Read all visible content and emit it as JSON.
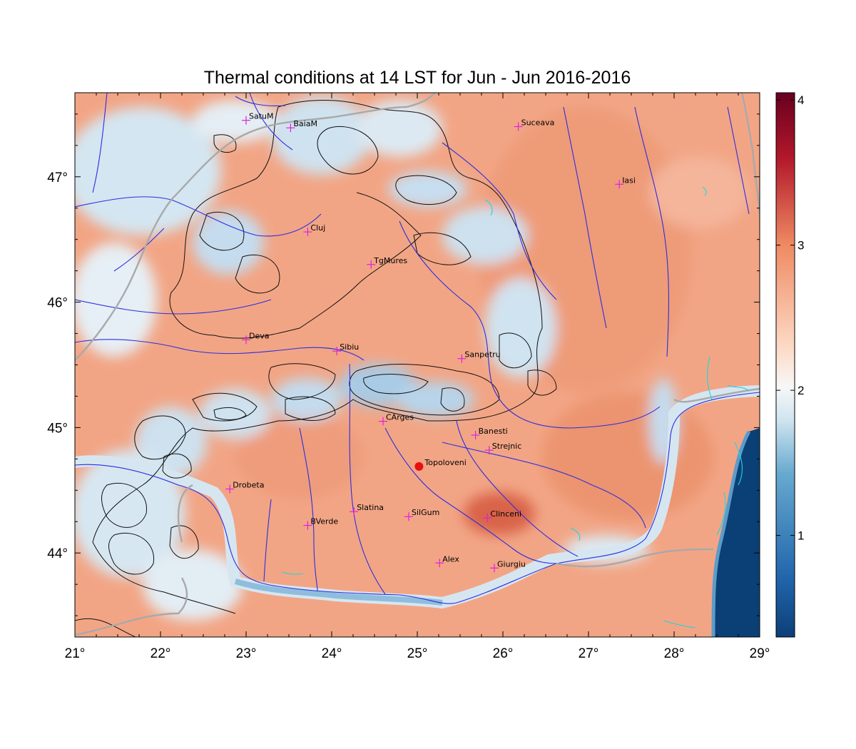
{
  "title": "Thermal conditions at 14 LST for Jun - Jun  2016-2016",
  "map_extent": {
    "lon": [
      21,
      29
    ],
    "lat": [
      43.33,
      47.67
    ]
  },
  "x_axis": {
    "ticks": [
      21,
      22,
      23,
      24,
      25,
      26,
      27,
      28,
      29
    ],
    "labels": [
      "21°",
      "22°",
      "23°",
      "24°",
      "25°",
      "26°",
      "27°",
      "28°",
      "29°"
    ]
  },
  "y_axis": {
    "ticks": [
      44,
      45,
      46,
      47
    ],
    "labels": [
      "44°",
      "45°",
      "46°",
      "47°"
    ]
  },
  "colorbar": {
    "range": [
      0.3,
      4.05
    ],
    "ticks": [
      1,
      2,
      3,
      4
    ],
    "labels": [
      "1",
      "2",
      "3",
      "4"
    ],
    "colors": [
      "#0d3f78",
      "#2166ac",
      "#67a9cf",
      "#d1e5f0",
      "#f7f7f7",
      "#fddbc7",
      "#ef8a62",
      "#b2182b",
      "#67001f"
    ]
  },
  "colors": {
    "land_warm": "#f2a585",
    "land_cool": "#d4e6f1",
    "sea": "#0b4076",
    "rivers": "#2d2de0",
    "borders": "#a9a9a9",
    "marker": "#e020e0",
    "highlight": "#e81010"
  },
  "cities": [
    {
      "name": "SatuM",
      "lon": 23.0,
      "lat": 47.45
    },
    {
      "name": "BaiaM",
      "lon": 23.52,
      "lat": 47.39
    },
    {
      "name": "Suceava",
      "lon": 26.18,
      "lat": 47.4
    },
    {
      "name": "Iasi",
      "lon": 27.36,
      "lat": 46.94
    },
    {
      "name": "Cluj",
      "lon": 23.72,
      "lat": 46.56
    },
    {
      "name": "TgMures",
      "lon": 24.46,
      "lat": 46.3
    },
    {
      "name": "Deva",
      "lon": 23.0,
      "lat": 45.7
    },
    {
      "name": "Sibiu",
      "lon": 24.06,
      "lat": 45.61
    },
    {
      "name": "Sanpetru",
      "lon": 25.52,
      "lat": 45.55
    },
    {
      "name": "CArges",
      "lon": 24.6,
      "lat": 45.05
    },
    {
      "name": "Banesti",
      "lon": 25.68,
      "lat": 44.94
    },
    {
      "name": "Strejnic",
      "lon": 25.84,
      "lat": 44.82
    },
    {
      "name": "Drobeta",
      "lon": 22.81,
      "lat": 44.51
    },
    {
      "name": "Slatina",
      "lon": 24.26,
      "lat": 44.33
    },
    {
      "name": "SilGum",
      "lon": 24.9,
      "lat": 44.29
    },
    {
      "name": "Clinceni",
      "lon": 25.82,
      "lat": 44.28
    },
    {
      "name": "BVerde",
      "lon": 23.72,
      "lat": 44.22
    },
    {
      "name": "Alex",
      "lon": 25.26,
      "lat": 43.92
    },
    {
      "name": "Giurgiu",
      "lon": 25.9,
      "lat": 43.88
    }
  ],
  "highlight_site": {
    "name": "Topoloveni",
    "lon": 25.02,
    "lat": 44.69
  }
}
